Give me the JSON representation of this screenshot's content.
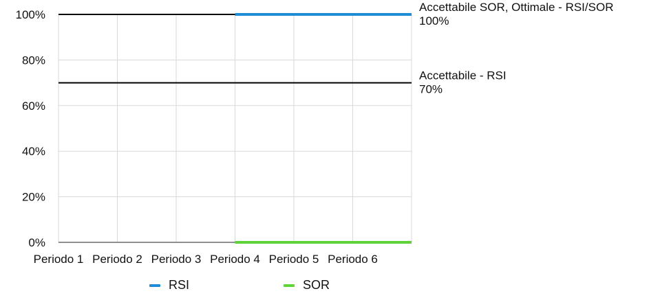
{
  "chart_data": {
    "type": "line",
    "categories": [
      "Periodo 1",
      "Periodo 2",
      "Periodo 3",
      "Periodo 4",
      "Periodo 5",
      "Periodo 6"
    ],
    "y_ticks": [
      "0%",
      "20%",
      "40%",
      "60%",
      "80%",
      "100%"
    ],
    "ylim": [
      0,
      100
    ],
    "grid": true,
    "legend_position": "bottom",
    "series": [
      {
        "name": "RSI",
        "color": "#1f8dd6",
        "values": [
          null,
          null,
          null,
          100,
          100,
          100
        ]
      },
      {
        "name": "SOR",
        "color": "#5fd43a",
        "values": [
          null,
          null,
          null,
          0,
          0,
          0
        ]
      }
    ],
    "reference_lines": [
      {
        "value": 100,
        "label": "Accettabile SOR, Ottimale - RSI/SOR",
        "value_label": "100%",
        "color": "#000000"
      },
      {
        "value": 70,
        "label": "Accettabile - RSI",
        "value_label": "70%",
        "color": "#000000"
      }
    ]
  }
}
